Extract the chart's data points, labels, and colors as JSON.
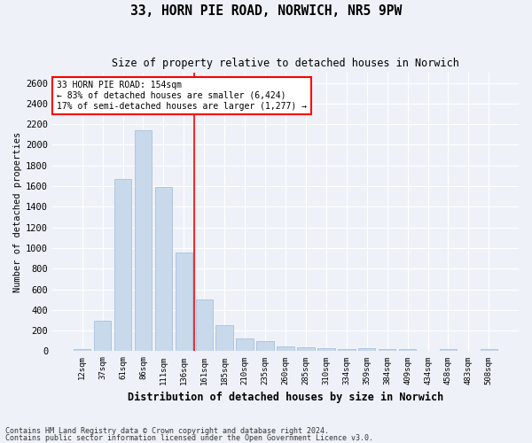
{
  "title": "33, HORN PIE ROAD, NORWICH, NR5 9PW",
  "subtitle": "Size of property relative to detached houses in Norwich",
  "xlabel": "Distribution of detached houses by size in Norwich",
  "ylabel": "Number of detached properties",
  "bar_color": "#c8d9ec",
  "bar_edge_color": "#a0b8d8",
  "categories": [
    "12sqm",
    "37sqm",
    "61sqm",
    "86sqm",
    "111sqm",
    "136sqm",
    "161sqm",
    "185sqm",
    "210sqm",
    "235sqm",
    "260sqm",
    "285sqm",
    "310sqm",
    "334sqm",
    "359sqm",
    "384sqm",
    "409sqm",
    "434sqm",
    "458sqm",
    "483sqm",
    "508sqm"
  ],
  "values": [
    25,
    300,
    1670,
    2140,
    1590,
    960,
    500,
    250,
    120,
    100,
    50,
    40,
    30,
    20,
    30,
    20,
    20,
    5,
    20,
    5,
    25
  ],
  "ylim": [
    0,
    2700
  ],
  "yticks": [
    0,
    200,
    400,
    600,
    800,
    1000,
    1200,
    1400,
    1600,
    1800,
    2000,
    2200,
    2400,
    2600
  ],
  "vline_x": 5.5,
  "annotation_text": "33 HORN PIE ROAD: 154sqm\n← 83% of detached houses are smaller (6,424)\n17% of semi-detached houses are larger (1,277) →",
  "annotation_box_color": "white",
  "annotation_edge_color": "red",
  "vline_color": "red",
  "footer1": "Contains HM Land Registry data © Crown copyright and database right 2024.",
  "footer2": "Contains public sector information licensed under the Open Government Licence v3.0.",
  "background_color": "#eef2f8",
  "grid_color": "white"
}
